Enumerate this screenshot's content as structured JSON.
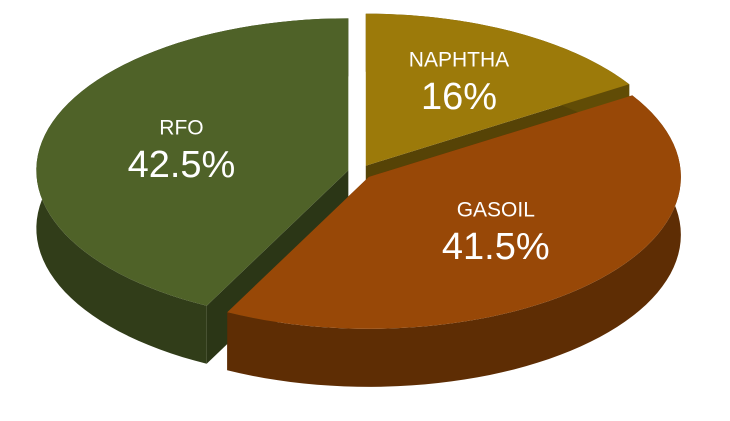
{
  "chart_data": {
    "type": "pie",
    "categories": [
      "NAPHTHA",
      "GASOIL",
      "RFO"
    ],
    "values": [
      16,
      41.5,
      42.5
    ],
    "value_labels": [
      "16%",
      "41.5%",
      "42.5%"
    ],
    "colors": [
      "#9c7a0a",
      "#984807",
      "#4f6228"
    ]
  }
}
